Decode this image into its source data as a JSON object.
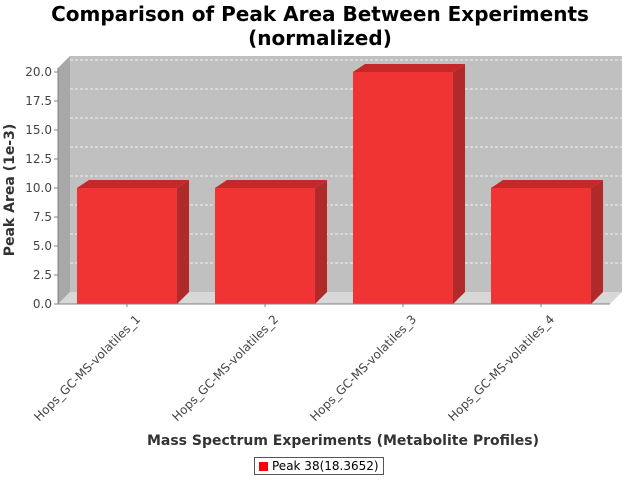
{
  "chart_data": {
    "type": "bar",
    "title_lines": [
      "Comparison of Peak Area Between Experiments",
      "(normalized)"
    ],
    "xlabel": "Mass Spectrum Experiments (Metabolite Profiles)",
    "ylabel": "Peak Area (1e-3)",
    "categories": [
      "Hops_GC-MS-volatiles_1",
      "Hops_GC-MS-volatiles_2",
      "Hops_GC-MS-volatiles_3",
      "Hops_GC-MS-volatiles_4"
    ],
    "series": [
      {
        "name": "Peak 38(18.3652)",
        "values": [
          10.0,
          10.0,
          20.0,
          10.0
        ],
        "color": "#ff0000"
      }
    ],
    "ylim": [
      0,
      20.0
    ],
    "yticks": [
      "0.0",
      "2.5",
      "5.0",
      "7.5",
      "10.0",
      "12.5",
      "15.0",
      "17.5",
      "20.0"
    ],
    "ytick_values": [
      0,
      2.5,
      5.0,
      7.5,
      10.0,
      12.5,
      15.0,
      17.5,
      20.0
    ],
    "grid": true,
    "style": "3d",
    "legend_position": "bottom"
  },
  "colors": {
    "plot_background": "#c0c0c0",
    "bar_front": "#f03333",
    "bar_top": "#c42828",
    "bar_side": "#b02a2a"
  }
}
